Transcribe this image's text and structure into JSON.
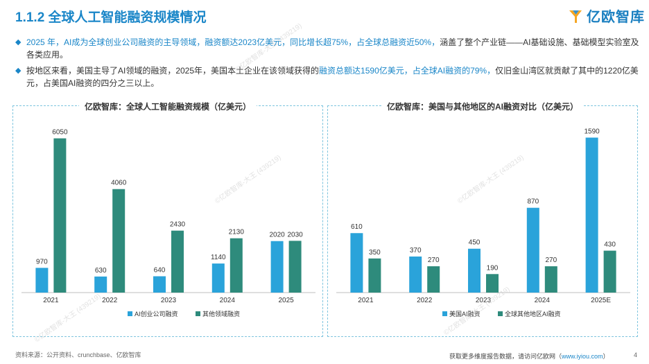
{
  "header": {
    "title": "1.1.2 全球人工智能融资规模情况",
    "logo_text": "亿欧智库"
  },
  "bullets": [
    {
      "parts": [
        {
          "text": "2025 年，AI成为全球创业公司融资的主导领域，融资额达2023亿美元，同比增长超75%，占全球总融资近50%，",
          "hl": true
        },
        {
          "text": "涵盖了整个产业链——AI基础设施、基础模型实验室及各类应用。",
          "hl": false
        }
      ]
    },
    {
      "parts": [
        {
          "text": "按地区来看，美国主导了AI领域的融资，2025年，美国本土企业在该领域获得的",
          "hl": false
        },
        {
          "text": "融资总额达1590亿美元，占全球AI融资的79%，",
          "hl": true
        },
        {
          "text": "仅旧金山湾区就贡献了其中的1220亿美元，占美国AI融资的四分之三以上。",
          "hl": false
        }
      ]
    }
  ],
  "watermark": "©亿欧智库-大王 (439219)",
  "chart_data": [
    {
      "type": "bar",
      "title": "亿欧智库：全球人工智能融资规模（亿美元）",
      "categories": [
        "2021",
        "2022",
        "2023",
        "2024",
        "2025"
      ],
      "series": [
        {
          "name": "AI创业公司融资",
          "values": [
            970,
            630,
            640,
            1140,
            2020
          ],
          "color": "#2aa3da"
        },
        {
          "name": "其他领域融资",
          "values": [
            6050,
            4060,
            2430,
            2130,
            2030
          ],
          "color": "#2e8b7c"
        }
      ],
      "ylim": [
        0,
        6500
      ],
      "xlabel": "",
      "ylabel": "",
      "legend": "bottom"
    },
    {
      "type": "bar",
      "title": "亿欧智库：美国与其他地区的AI融资对比（亿美元）",
      "categories": [
        "2021",
        "2022",
        "2023",
        "2024",
        "2025E"
      ],
      "series": [
        {
          "name": "美国AI融资",
          "values": [
            610,
            370,
            450,
            870,
            1590
          ],
          "color": "#2aa3da"
        },
        {
          "name": "全球其他地区AI融资",
          "values": [
            350,
            270,
            190,
            270,
            430
          ],
          "color": "#2e8b7c"
        }
      ],
      "ylim": [
        0,
        1700
      ],
      "xlabel": "",
      "ylabel": "",
      "legend": "bottom"
    }
  ],
  "footer": {
    "source": "资料来源：公开资料、crunchbase、亿欧智库",
    "cta": "获取更多维度报告数据，请访问亿欧网（",
    "link": "www.iyiou.com",
    "cta_end": "）",
    "page": "4"
  }
}
